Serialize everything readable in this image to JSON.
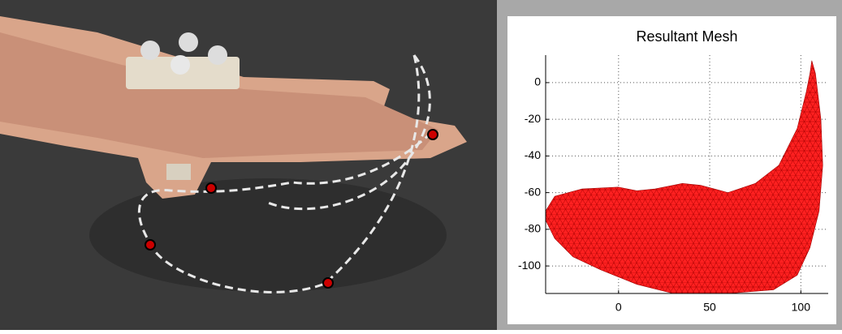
{
  "chart_data": {
    "type": "mesh",
    "title": "Resultant Mesh",
    "series": [
      {
        "color": "#ff2020",
        "x": [
          -40,
          -35,
          -20,
          0,
          10,
          20,
          35,
          45,
          60,
          75,
          88,
          98,
          103,
          105,
          106,
          108,
          111,
          112,
          110,
          105,
          98,
          85,
          60,
          30,
          10,
          -10,
          -25,
          -35,
          -40
        ],
        "values": [
          -70,
          -62,
          -58,
          -57,
          -59,
          -58,
          -55,
          -56,
          -60,
          -55,
          -45,
          -25,
          -5,
          5,
          12,
          5,
          -20,
          -45,
          -70,
          -90,
          -105,
          -113,
          -115,
          -115,
          -110,
          -102,
          -95,
          -85,
          -75
        ]
      }
    ],
    "xlim": [
      -40,
      115
    ],
    "ylim": [
      -115,
      15
    ],
    "xticks": [
      0,
      50,
      100
    ],
    "yticks": [
      0,
      -20,
      -40,
      -60,
      -80,
      -100
    ],
    "grid": true
  }
}
